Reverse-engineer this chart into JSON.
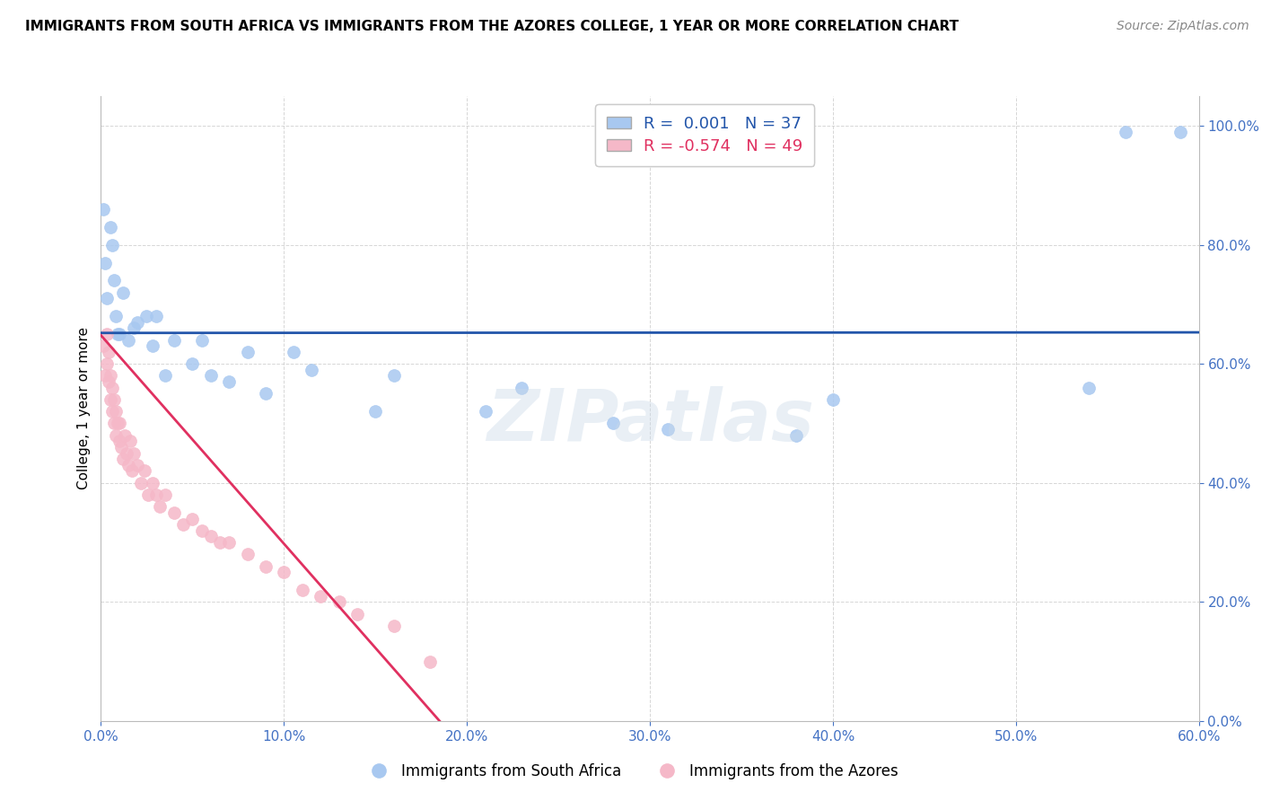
{
  "title": "IMMIGRANTS FROM SOUTH AFRICA VS IMMIGRANTS FROM THE AZORES COLLEGE, 1 YEAR OR MORE CORRELATION CHART",
  "source": "Source: ZipAtlas.com",
  "xlabel_blue": "Immigrants from South Africa",
  "xlabel_pink": "Immigrants from the Azores",
  "ylabel": "College, 1 year or more",
  "xlim": [
    0.0,
    0.6
  ],
  "ylim": [
    0.0,
    1.05
  ],
  "xticks": [
    0.0,
    0.1,
    0.2,
    0.3,
    0.4,
    0.5,
    0.6
  ],
  "yticks": [
    0.0,
    0.2,
    0.4,
    0.6,
    0.8,
    1.0
  ],
  "blue_R": 0.001,
  "blue_N": 37,
  "pink_R": -0.574,
  "pink_N": 49,
  "blue_color": "#A8C8F0",
  "pink_color": "#F5B8C8",
  "blue_line_color": "#2255AA",
  "pink_line_color": "#E03060",
  "legend_text_blue": "#2255AA",
  "legend_text_pink": "#E03060",
  "background_color": "#FFFFFF",
  "grid_color": "#CCCCCC",
  "blue_x": [
    0.001,
    0.002,
    0.003,
    0.005,
    0.006,
    0.007,
    0.008,
    0.009,
    0.01,
    0.012,
    0.015,
    0.018,
    0.02,
    0.025,
    0.028,
    0.03,
    0.035,
    0.04,
    0.05,
    0.055,
    0.06,
    0.07,
    0.08,
    0.09,
    0.105,
    0.115,
    0.15,
    0.16,
    0.21,
    0.23,
    0.28,
    0.31,
    0.38,
    0.4,
    0.54,
    0.56,
    0.59
  ],
  "blue_y": [
    0.86,
    0.77,
    0.71,
    0.83,
    0.8,
    0.74,
    0.68,
    0.65,
    0.65,
    0.72,
    0.64,
    0.66,
    0.67,
    0.68,
    0.63,
    0.68,
    0.58,
    0.64,
    0.6,
    0.64,
    0.58,
    0.57,
    0.62,
    0.55,
    0.62,
    0.59,
    0.52,
    0.58,
    0.52,
    0.56,
    0.5,
    0.49,
    0.48,
    0.54,
    0.56,
    0.99,
    0.99
  ],
  "pink_x": [
    0.001,
    0.002,
    0.003,
    0.003,
    0.004,
    0.004,
    0.005,
    0.005,
    0.006,
    0.006,
    0.007,
    0.007,
    0.008,
    0.008,
    0.009,
    0.01,
    0.01,
    0.011,
    0.012,
    0.013,
    0.014,
    0.015,
    0.016,
    0.017,
    0.018,
    0.02,
    0.022,
    0.024,
    0.026,
    0.028,
    0.03,
    0.032,
    0.035,
    0.04,
    0.045,
    0.05,
    0.055,
    0.06,
    0.065,
    0.07,
    0.08,
    0.09,
    0.1,
    0.11,
    0.12,
    0.13,
    0.14,
    0.16,
    0.18
  ],
  "pink_y": [
    0.63,
    0.58,
    0.65,
    0.6,
    0.57,
    0.62,
    0.54,
    0.58,
    0.52,
    0.56,
    0.5,
    0.54,
    0.48,
    0.52,
    0.5,
    0.47,
    0.5,
    0.46,
    0.44,
    0.48,
    0.45,
    0.43,
    0.47,
    0.42,
    0.45,
    0.43,
    0.4,
    0.42,
    0.38,
    0.4,
    0.38,
    0.36,
    0.38,
    0.35,
    0.33,
    0.34,
    0.32,
    0.31,
    0.3,
    0.3,
    0.28,
    0.26,
    0.25,
    0.22,
    0.21,
    0.2,
    0.18,
    0.16,
    0.1
  ],
  "blue_trend_x0": 0.0,
  "blue_trend_y0": 0.652,
  "blue_trend_x1": 0.6,
  "blue_trend_y1": 0.653,
  "pink_trend_x0": 0.0,
  "pink_trend_y0": 0.648,
  "pink_trend_x1": 0.185,
  "pink_trend_y1": 0.0
}
